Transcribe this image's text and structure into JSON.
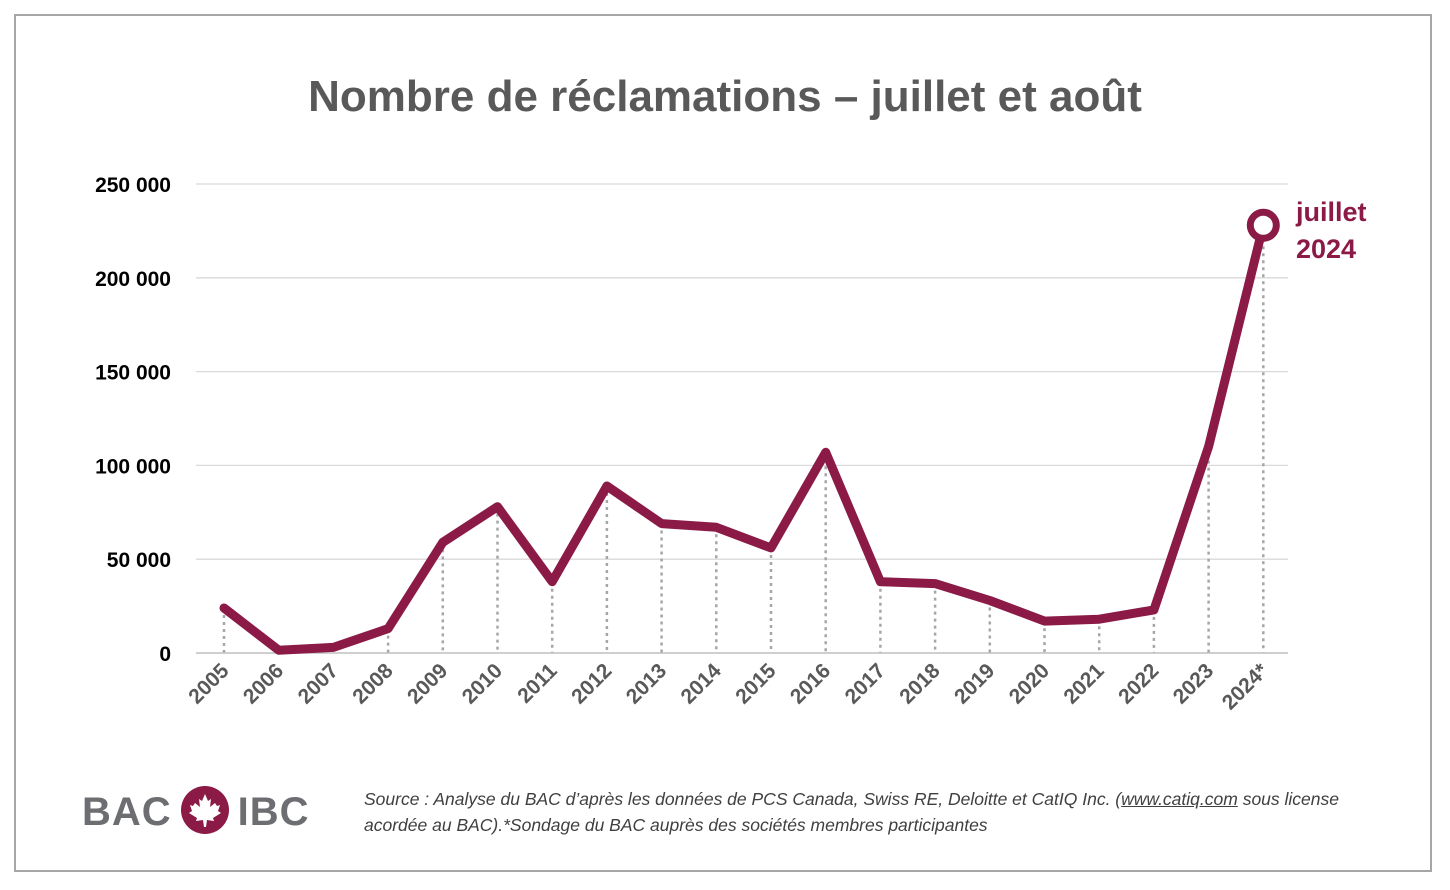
{
  "title": "Nombre de réclamations – juillet et août",
  "chart_data": {
    "type": "line",
    "title": "Nombre de réclamations – juillet et août",
    "xlabel": "",
    "ylabel": "",
    "categories": [
      "2005",
      "2006",
      "2007",
      "2008",
      "2009",
      "2010",
      "2011",
      "2012",
      "2013",
      "2014",
      "2015",
      "2016",
      "2017",
      "2018",
      "2019",
      "2020",
      "2021",
      "2022",
      "2023",
      "2024*"
    ],
    "values": [
      24000,
      1500,
      3000,
      13000,
      59000,
      78000,
      38000,
      89000,
      69000,
      67000,
      56000,
      107000,
      38000,
      37000,
      28000,
      17000,
      18000,
      23000,
      110000,
      228000
    ],
    "ylim": [
      0,
      250000
    ],
    "yticks": [
      0,
      50000,
      100000,
      150000,
      200000,
      250000
    ],
    "ytick_labels": [
      "0",
      "50 000",
      "100 000",
      "150 000",
      "200 000",
      "250 000"
    ],
    "grid": true,
    "line_color": "#8b1a46",
    "annotation": {
      "line1": "juillet",
      "line2": "2024"
    }
  },
  "logo": {
    "left": "BAC",
    "right": "IBC"
  },
  "source": {
    "part1": "Source : Analyse du BAC d’après les données de PCS Canada, ",
    "swiss": "Swiss",
    "part2": " RE, Deloitte et ",
    "catiq": "CatIQ",
    "part3": " Inc. (",
    "url": "www.catiq.com",
    "part4": " sous ",
    "license": "license acordée",
    "part5": " au BAC).*Sondage du BAC auprès des sociétés membres participantes"
  }
}
